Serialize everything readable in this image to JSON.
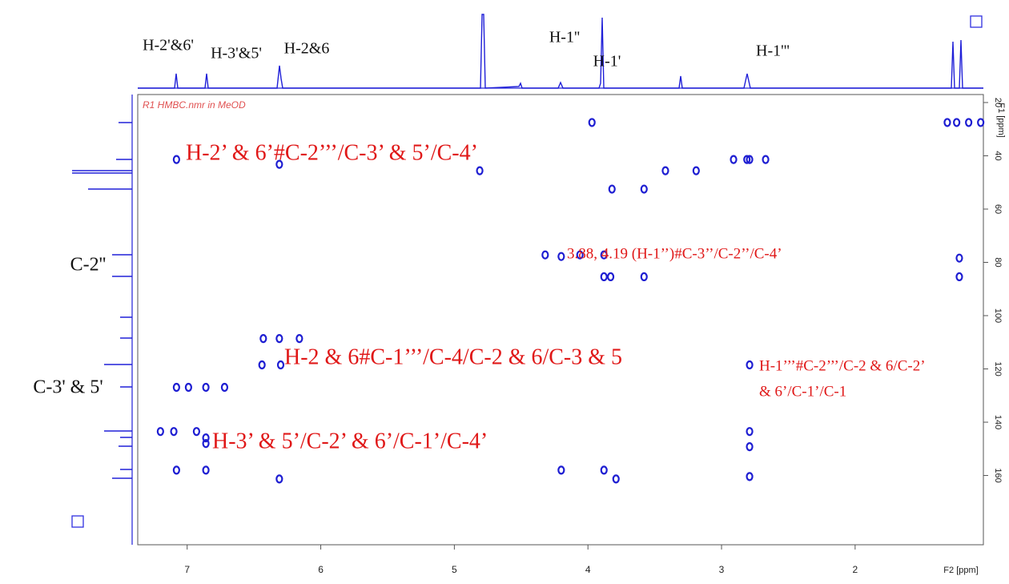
{
  "chart_data": {
    "type": "scatter",
    "title": "R1 HMBC.nmr in MeOD",
    "x_label": "F2 [ppm]",
    "y_label": "F1 [ppm]",
    "xlim": [
      7.37,
      1.04
    ],
    "ylim": [
      17,
      186
    ],
    "xticks": [
      7,
      6,
      5,
      4,
      3,
      2
    ],
    "yticks": [
      20,
      40,
      60,
      80,
      100,
      120,
      140,
      160
    ],
    "series": [
      {
        "name": "HMBC",
        "color": "#1e1ed2",
        "x": [
          1.31,
          1.24,
          1.15,
          1.06,
          3.97,
          7.08,
          6.31,
          2.91,
          2.81,
          2.79,
          2.67,
          4.81,
          3.42,
          3.19,
          3.82,
          3.58,
          4.32,
          4.2,
          4.06,
          3.88,
          3.88,
          3.83,
          3.58,
          1.22,
          1.22,
          6.31,
          6.16,
          6.43,
          6.44,
          6.3,
          2.79,
          7.08,
          6.99,
          6.86,
          6.72,
          7.2,
          7.1,
          6.93,
          6.86,
          6.86,
          2.79,
          2.79,
          2.79,
          7.08,
          6.86,
          6.31,
          4.2,
          3.88,
          3.79
        ],
        "y": [
          27.5,
          27.5,
          27.5,
          27.5,
          27.5,
          41.4,
          43.2,
          41.4,
          41.4,
          41.4,
          41.4,
          45.6,
          45.6,
          45.6,
          52.5,
          52.5,
          77.2,
          77.8,
          77.2,
          77.2,
          85.4,
          85.4,
          85.4,
          78.4,
          85.4,
          108.6,
          108.6,
          108.6,
          118.5,
          118.5,
          118.5,
          126.9,
          126.9,
          126.9,
          126.9,
          143.5,
          143.5,
          143.5,
          145.9,
          148,
          143.5,
          149.2,
          160.4,
          158,
          158,
          161.3,
          158,
          158,
          161.3
        ]
      }
    ],
    "peak_labels": [
      "H-2'&6'",
      "H-3'&5'",
      "H-2&6",
      "H-1''",
      "H-1'",
      "H-1'''"
    ],
    "carbon_labels": [
      "C-2''",
      "C-3' & 5'"
    ],
    "annotations": [
      "H-2’ & 6’#C-2’’’/C-3’ & 5’/C-4’",
      "3.88, 4.19 (H-1’’)#C-3’’/C-2’’/C-4’",
      "H-2 & 6#C-1’’’/C-4/C-2 & 6/C-3 & 5",
      "H-1’’’#C-2’’’/C-2 & 6/C-2’",
      "& 6’/C-1’/C-1",
      "H-3’ & 5’/C-2’ & 6’/C-1’/C-4’"
    ]
  }
}
